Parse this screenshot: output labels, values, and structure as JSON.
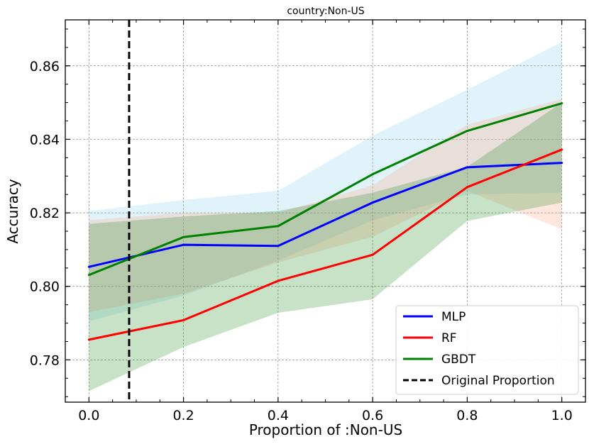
{
  "chart_data": {
    "type": "line",
    "title": "country:Non-US",
    "xlabel": "Proportion of :Non-US",
    "ylabel": "Accuracy",
    "xlim": [
      -0.05,
      1.05
    ],
    "ylim": [
      0.7685,
      0.8725
    ],
    "xticks": [
      0.0,
      0.2,
      0.4,
      0.6,
      0.8,
      1.0
    ],
    "xtick_labels": [
      "0.0",
      "0.2",
      "0.4",
      "0.6",
      "0.8",
      "1.0"
    ],
    "yticks": [
      0.78,
      0.8,
      0.82,
      0.84,
      0.86
    ],
    "ytick_labels": [
      "0.78",
      "0.80",
      "0.82",
      "0.84",
      "0.86"
    ],
    "grid": true,
    "legend_position": "bottom-right",
    "x": [
      0.0,
      0.2,
      0.4,
      0.6,
      0.8,
      1.0
    ],
    "series": [
      {
        "name": "MLP",
        "color": "#0000ff",
        "band_color": "#87ceeb",
        "values": [
          0.8053,
          0.8113,
          0.811,
          0.8228,
          0.8324,
          0.8336
        ],
        "lower": [
          0.7905,
          0.7975,
          0.807,
          0.818,
          0.825,
          0.8255
        ],
        "upper": [
          0.8205,
          0.8235,
          0.826,
          0.841,
          0.8535,
          0.8665
        ]
      },
      {
        "name": "RF",
        "color": "#ff0000",
        "band_color": "#ffa07a",
        "values": [
          0.7855,
          0.7908,
          0.8015,
          0.8086,
          0.827,
          0.8372
        ],
        "lower": [
          0.793,
          0.798,
          0.8065,
          0.8135,
          0.826,
          0.8155
        ],
        "upper": [
          0.818,
          0.82,
          0.82,
          0.8275,
          0.844,
          0.851
        ]
      },
      {
        "name": "GBDT",
        "color": "#008000",
        "band_color": "#228b22",
        "values": [
          0.8031,
          0.8134,
          0.8164,
          0.8305,
          0.8423,
          0.8498
        ],
        "lower": [
          0.7715,
          0.7835,
          0.7928,
          0.7965,
          0.8178,
          0.8228
        ],
        "upper": [
          0.817,
          0.819,
          0.8205,
          0.8255,
          0.8325,
          0.85
        ]
      }
    ],
    "vline": {
      "x": 0.085,
      "name": "Original Proportion",
      "color": "#000000",
      "style": "dashed"
    }
  }
}
